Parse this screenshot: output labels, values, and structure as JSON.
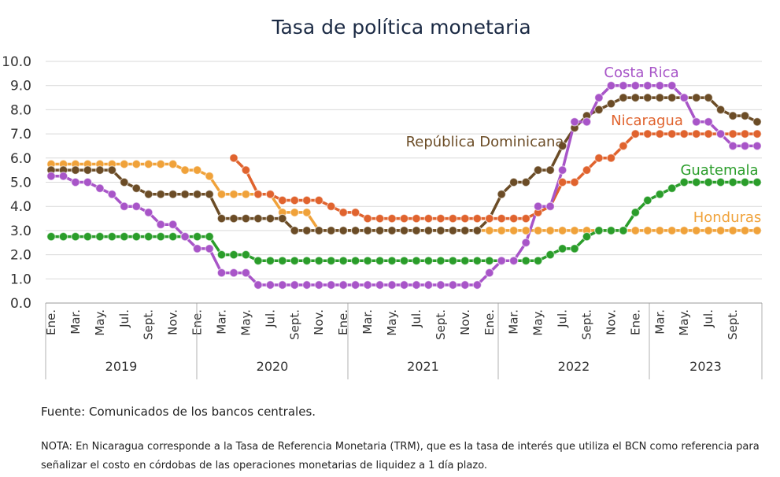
{
  "chart_data": {
    "type": "line",
    "title": "Tasa de política monetaria",
    "ylim": [
      0,
      10
    ],
    "y_ticks": [
      "0.0",
      "1.0",
      "2.0",
      "3.0",
      "4.0",
      "5.0",
      "6.0",
      "7.0",
      "8.0",
      "9.0",
      "10.0"
    ],
    "x_tick_labels": [
      "Ene.",
      "Mar.",
      "May.",
      "Jul.",
      "Sept.",
      "Nov.",
      "Ene.",
      "Mar.",
      "May.",
      "Jul.",
      "Sept.",
      "Nov.",
      "Ene.",
      "Mar.",
      "May.",
      "Jul.",
      "Sept.",
      "Nov.",
      "Ene.",
      "Mar.",
      "May.",
      "Jul.",
      "Sept.",
      "Nov.",
      "Ene.",
      "Mar.",
      "May.",
      "Jul.",
      "Sept."
    ],
    "years": [
      "2019",
      "2020",
      "2021",
      "2022",
      "2023"
    ],
    "grid": true,
    "series": [
      {
        "name": "Costa Rica",
        "color": "#a855c8",
        "label_color": "#a855c8",
        "values": [
          5.25,
          5.25,
          5.0,
          5.0,
          4.75,
          4.5,
          4.0,
          4.0,
          3.75,
          3.25,
          3.25,
          2.75,
          2.25,
          2.25,
          1.25,
          1.25,
          1.25,
          0.75,
          0.75,
          0.75,
          0.75,
          0.75,
          0.75,
          0.75,
          0.75,
          0.75,
          0.75,
          0.75,
          0.75,
          0.75,
          0.75,
          0.75,
          0.75,
          0.75,
          0.75,
          0.75,
          1.25,
          1.75,
          1.75,
          2.5,
          4.0,
          4.0,
          5.5,
          7.5,
          7.5,
          8.5,
          9.0,
          9.0,
          9.0,
          9.0,
          9.0,
          9.0,
          8.5,
          7.5,
          7.5,
          7.0,
          6.5,
          6.5,
          6.5
        ]
      },
      {
        "name": "Nicaragua",
        "color": "#e0632e",
        "label_color": "#e0632e",
        "values": [
          null,
          null,
          null,
          null,
          null,
          null,
          null,
          null,
          null,
          null,
          null,
          null,
          null,
          null,
          null,
          6.0,
          5.5,
          4.5,
          4.5,
          4.25,
          4.25,
          4.25,
          4.25,
          4.0,
          3.75,
          3.75,
          3.5,
          3.5,
          3.5,
          3.5,
          3.5,
          3.5,
          3.5,
          3.5,
          3.5,
          3.5,
          3.5,
          3.5,
          3.5,
          3.5,
          3.75,
          4.0,
          5.0,
          5.0,
          5.5,
          6.0,
          6.0,
          6.5,
          7.0,
          7.0,
          7.0,
          7.0,
          7.0,
          7.0,
          7.0,
          7.0,
          7.0,
          7.0,
          7.0
        ]
      },
      {
        "name": "República Dominicana",
        "color": "#6b4c26",
        "label_color": "#6b4c26",
        "values": [
          5.5,
          5.5,
          5.5,
          5.5,
          5.5,
          5.5,
          5.0,
          4.75,
          4.5,
          4.5,
          4.5,
          4.5,
          4.5,
          4.5,
          3.5,
          3.5,
          3.5,
          3.5,
          3.5,
          3.5,
          3.0,
          3.0,
          3.0,
          3.0,
          3.0,
          3.0,
          3.0,
          3.0,
          3.0,
          3.0,
          3.0,
          3.0,
          3.0,
          3.0,
          3.0,
          3.0,
          3.5,
          4.5,
          5.0,
          5.0,
          5.5,
          5.5,
          6.5,
          7.25,
          7.75,
          8.0,
          8.25,
          8.5,
          8.5,
          8.5,
          8.5,
          8.5,
          8.5,
          8.5,
          8.5,
          8.0,
          7.75,
          7.75,
          7.5
        ]
      },
      {
        "name": "Guatemala",
        "color": "#2a9d2a",
        "label_color": "#2a9d2a",
        "values": [
          2.75,
          2.75,
          2.75,
          2.75,
          2.75,
          2.75,
          2.75,
          2.75,
          2.75,
          2.75,
          2.75,
          2.75,
          2.75,
          2.75,
          2.0,
          2.0,
          2.0,
          1.75,
          1.75,
          1.75,
          1.75,
          1.75,
          1.75,
          1.75,
          1.75,
          1.75,
          1.75,
          1.75,
          1.75,
          1.75,
          1.75,
          1.75,
          1.75,
          1.75,
          1.75,
          1.75,
          1.75,
          1.75,
          1.75,
          1.75,
          1.75,
          2.0,
          2.25,
          2.25,
          2.75,
          3.0,
          3.0,
          3.0,
          3.75,
          4.25,
          4.5,
          4.75,
          5.0,
          5.0,
          5.0,
          5.0,
          5.0,
          5.0,
          5.0
        ]
      },
      {
        "name": "Honduras",
        "color": "#f0a23a",
        "label_color": "#f0a23a",
        "values": [
          5.75,
          5.75,
          5.75,
          5.75,
          5.75,
          5.75,
          5.75,
          5.75,
          5.75,
          5.75,
          5.75,
          5.5,
          5.5,
          5.25,
          4.5,
          4.5,
          4.5,
          4.5,
          4.5,
          3.75,
          3.75,
          3.75,
          3.0,
          3.0,
          3.0,
          3.0,
          3.0,
          3.0,
          3.0,
          3.0,
          3.0,
          3.0,
          3.0,
          3.0,
          3.0,
          3.0,
          3.0,
          3.0,
          3.0,
          3.0,
          3.0,
          3.0,
          3.0,
          3.0,
          3.0,
          3.0,
          3.0,
          3.0,
          3.0,
          3.0,
          3.0,
          3.0,
          3.0,
          3.0,
          3.0,
          3.0,
          3.0,
          3.0,
          3.0
        ]
      }
    ]
  },
  "source": "Fuente: Comunicados de los bancos centrales.",
  "note": "NOTA: En Nicaragua corresponde a la Tasa de Referencia Monetaria (TRM), que es la tasa de interés que utiliza el BCN como referencia para señalizar el costo en córdobas de las operaciones monetarias de liquidez a 1 día plazo."
}
